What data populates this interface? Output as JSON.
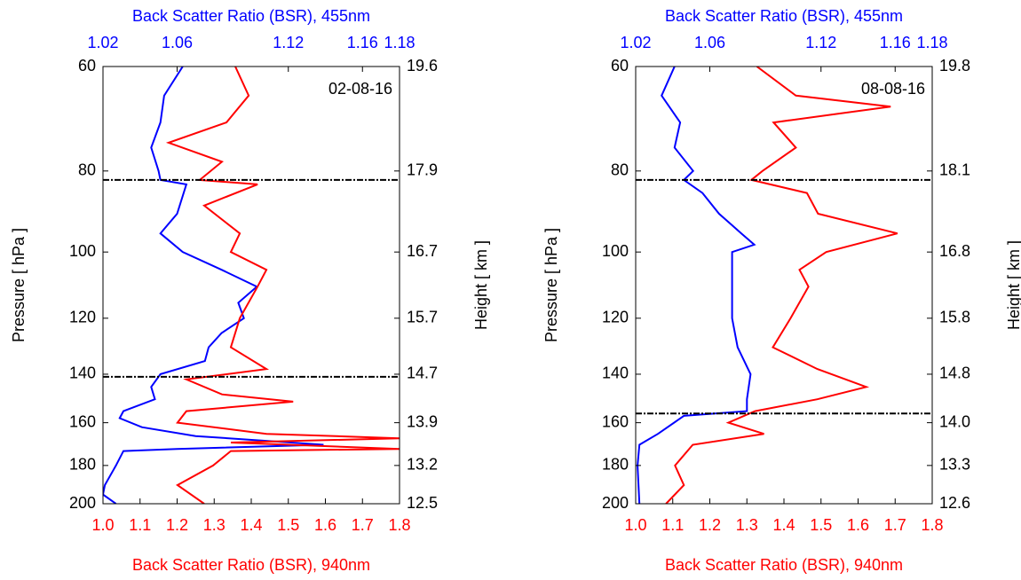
{
  "chart_data": [
    {
      "type": "line",
      "annotation": "02-08-16",
      "ylabel": "Pressure [ hPa ]",
      "y2label": "Height [ km ]",
      "xlabel": "Back Scatter Ratio (BSR), 940nm",
      "x2label": "Back Scatter Ratio (BSR), 455nm",
      "yscale": "log",
      "ylim": [
        200,
        60
      ],
      "yticks": [
        60,
        80,
        100,
        120,
        140,
        160,
        180,
        200
      ],
      "y2ticks": [
        19.6,
        17.9,
        16.7,
        15.7,
        14.7,
        13.9,
        13.2,
        12.5
      ],
      "xlim": [
        1.0,
        1.8
      ],
      "xticks": [
        {
          "value": 1,
          "label": "1.0"
        },
        1.1,
        1.2,
        1.3,
        1.4,
        1.5,
        1.6,
        1.7,
        1.8
      ],
      "x2lim": [
        1.02,
        1.18
      ],
      "x2ticks": [
        1.02,
        1.06,
        1.12,
        1.16,
        1.18
      ],
      "hlines": [
        82,
        141
      ],
      "series": [
        {
          "color": "#0000ff",
          "axis": "x2",
          "y": [
            60,
            65,
            70,
            75,
            80,
            82,
            83,
            90,
            95,
            100,
            105,
            110,
            115,
            120,
            125,
            130,
            135,
            140,
            145,
            150,
            155,
            158,
            162,
            166,
            170,
            172,
            173,
            180,
            190,
            195,
            200
          ],
          "values": [
            1.063,
            1.053,
            1.051,
            1.046,
            1.05,
            1.051,
            1.065,
            1.06,
            1.051,
            1.063,
            1.084,
            1.103,
            1.093,
            1.096,
            1.084,
            1.077,
            1.075,
            1.051,
            1.046,
            1.048,
            1.031,
            1.029,
            1.041,
            1.07,
            1.139,
            1.06,
            1.031,
            1.027,
            1.021,
            1.02,
            1.027
          ]
        },
        {
          "color": "#ff0000",
          "axis": "x",
          "y": [
            60,
            65,
            70,
            74,
            78,
            82,
            83,
            88,
            95,
            100,
            105,
            110,
            120,
            130,
            138,
            142,
            148,
            151,
            155,
            160,
            165,
            167,
            169,
            172,
            173,
            180,
            190,
            200
          ],
          "values": [
            1.357,
            1.393,
            1.333,
            1.177,
            1.321,
            1.261,
            1.417,
            1.273,
            1.369,
            1.345,
            1.441,
            1.417,
            1.369,
            1.345,
            1.441,
            1.225,
            1.321,
            1.513,
            1.225,
            1.201,
            1.441,
            1.8,
            1.345,
            1.8,
            1.345,
            1.297,
            1.201,
            1.273
          ]
        }
      ]
    },
    {
      "type": "line",
      "annotation": "08-08-16",
      "ylabel": "Pressure [ hPa ]",
      "y2label": "Height [ km ]",
      "xlabel": "Back Scatter Ratio (BSR), 940nm",
      "x2label": "Back Scatter Ratio (BSR), 455nm",
      "yscale": "log",
      "ylim": [
        200,
        60
      ],
      "yticks": [
        60,
        80,
        100,
        120,
        140,
        160,
        180,
        200
      ],
      "y2ticks": [
        19.8,
        18.1,
        16.8,
        15.8,
        14.8,
        {
          "value": 14,
          "label": "14.0"
        },
        13.3,
        12.6
      ],
      "xlim": [
        1.0,
        1.8
      ],
      "xticks": [
        {
          "value": 1,
          "label": "1.0"
        },
        1.1,
        1.2,
        1.3,
        1.4,
        1.5,
        1.6,
        1.7,
        1.8
      ],
      "x2lim": [
        1.02,
        1.18
      ],
      "x2ticks": [
        1.02,
        1.06,
        1.12,
        1.16,
        1.18
      ],
      "hlines": [
        82,
        156
      ],
      "series": [
        {
          "color": "#0000ff",
          "axis": "x2",
          "y": [
            60,
            65,
            70,
            75,
            80,
            82,
            85,
            90,
            95,
            98,
            100,
            110,
            120,
            130,
            140,
            150,
            155,
            157,
            165,
            170,
            180,
            200
          ],
          "values": [
            1.041,
            1.034,
            1.044,
            1.041,
            1.051,
            1.046,
            1.056,
            1.065,
            1.077,
            1.084,
            1.072,
            1.072,
            1.072,
            1.075,
            1.082,
            1.08,
            1.08,
            1.046,
            1.032,
            1.022,
            1.021,
            1.022
          ]
        },
        {
          "color": "#ff0000",
          "axis": "x",
          "y": [
            60,
            65,
            67,
            70,
            75,
            80,
            82,
            85,
            90,
            95,
            100,
            105,
            110,
            120,
            130,
            138,
            145,
            150,
            155,
            160,
            165,
            170,
            180,
            190,
            200
          ],
          "values": [
            1.327,
            1.432,
            1.688,
            1.372,
            1.432,
            1.342,
            1.312,
            1.462,
            1.492,
            1.706,
            1.514,
            1.442,
            1.466,
            1.418,
            1.37,
            1.49,
            1.622,
            1.49,
            1.322,
            1.25,
            1.346,
            1.154,
            1.106,
            1.13,
            1.082
          ]
        }
      ]
    }
  ]
}
